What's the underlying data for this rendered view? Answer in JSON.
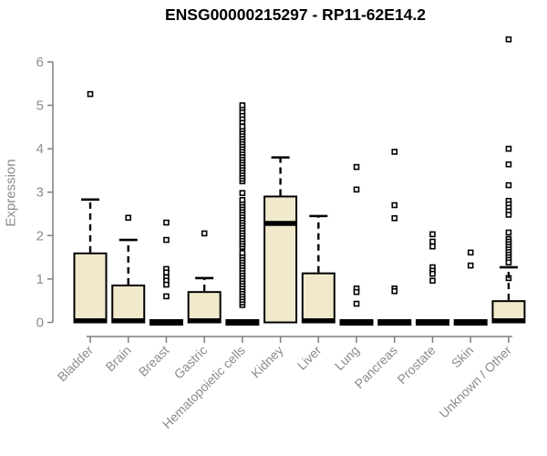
{
  "chart_data": {
    "type": "boxplot",
    "title": "ENSG00000215297 - RP11-62E14.2",
    "ylabel": "Expression",
    "xlabel": "",
    "ylim": [
      0,
      6
    ],
    "yticks": [
      0,
      1,
      2,
      3,
      4,
      5,
      6
    ],
    "grid": false,
    "legend": null,
    "categories": [
      "Bladder",
      "Brain",
      "Breast",
      "Gastric",
      "Hematopoietic cells",
      "Kidney",
      "Liver",
      "Lung",
      "Pancreas",
      "Prostate",
      "Skin",
      "Unknown / Other"
    ],
    "boxes": [
      {
        "category": "Bladder",
        "q1": 0,
        "median": 0.02,
        "q3": 1.59,
        "whisker_low": 0,
        "whisker_high": 2.83,
        "outliers": [
          5.26
        ]
      },
      {
        "category": "Brain",
        "q1": 0,
        "median": 0.02,
        "q3": 0.85,
        "whisker_low": 0,
        "whisker_high": 1.9,
        "outliers": [
          2.41
        ]
      },
      {
        "category": "Breast",
        "q1": 0,
        "median": 0,
        "q3": 0,
        "whisker_low": 0,
        "whisker_high": 0,
        "outliers": [
          2.3,
          1.9,
          1.23,
          1.15,
          1.04,
          0.96,
          0.87,
          0.6
        ]
      },
      {
        "category": "Gastric",
        "q1": 0,
        "median": 0.02,
        "q3": 0.7,
        "whisker_low": 0,
        "whisker_high": 1.02,
        "outliers": [
          2.05
        ]
      },
      {
        "category": "Hematopoietic cells",
        "q1": 0,
        "median": 0,
        "q3": 0,
        "whisker_low": 0,
        "whisker_high": 0,
        "outliers": [
          0.4,
          0.46,
          0.52,
          0.58,
          0.64,
          0.7,
          0.76,
          0.82,
          0.88,
          0.94,
          1.0,
          1.06,
          1.12,
          1.18,
          1.24,
          1.3,
          1.36,
          1.42,
          1.48,
          1.54,
          1.6,
          1.74,
          1.8,
          1.86,
          1.92,
          1.98,
          2.04,
          2.1,
          2.16,
          2.22,
          2.28,
          2.34,
          2.4,
          2.46,
          2.52,
          2.58,
          2.64,
          2.7,
          2.76,
          2.82,
          2.98,
          3.25,
          3.31,
          3.37,
          3.43,
          3.49,
          3.55,
          3.61,
          3.67,
          3.73,
          3.79,
          3.85,
          3.91,
          3.97,
          4.03,
          4.09,
          4.15,
          4.21,
          4.27,
          4.33,
          4.39,
          4.45,
          4.51,
          4.62,
          4.7,
          4.78,
          4.86,
          4.94,
          5.0
        ]
      },
      {
        "category": "Kidney",
        "q1": 0,
        "median": 2.28,
        "q3": 2.9,
        "whisker_low": 0,
        "whisker_high": 3.8,
        "outliers": []
      },
      {
        "category": "Liver",
        "q1": 0,
        "median": 0.02,
        "q3": 1.13,
        "whisker_low": 0,
        "whisker_high": 2.45,
        "outliers": []
      },
      {
        "category": "Lung",
        "q1": 0,
        "median": 0,
        "q3": 0,
        "whisker_low": 0,
        "whisker_high": 0,
        "outliers": [
          3.58,
          3.06,
          0.78,
          0.7,
          0.43
        ]
      },
      {
        "category": "Pancreas",
        "q1": 0,
        "median": 0,
        "q3": 0,
        "whisker_low": 0,
        "whisker_high": 0,
        "outliers": [
          3.93,
          2.7,
          2.4,
          0.78,
          0.72
        ]
      },
      {
        "category": "Prostate",
        "q1": 0,
        "median": 0,
        "q3": 0,
        "whisker_low": 0,
        "whisker_high": 0,
        "outliers": [
          2.03,
          1.86,
          1.75,
          1.27,
          1.19,
          1.12,
          0.96
        ]
      },
      {
        "category": "Skin",
        "q1": 0,
        "median": 0,
        "q3": 0,
        "whisker_low": 0,
        "whisker_high": 0,
        "outliers": [
          1.61,
          1.31
        ]
      },
      {
        "category": "Unknown / Other",
        "q1": 0,
        "median": 0.03,
        "q3": 0.49,
        "whisker_low": 0,
        "whisker_high": 1.27,
        "outliers": [
          6.52,
          4.0,
          3.64,
          3.16,
          2.8,
          2.72,
          2.64,
          2.56,
          2.48,
          2.07,
          1.92,
          1.86,
          1.8,
          1.74,
          1.68,
          1.62,
          1.56,
          1.5,
          1.44,
          1.38,
          1.02
        ]
      }
    ],
    "colors": {
      "box_fill": "#f0e9cc",
      "box_border": "#000000",
      "median": "#000000",
      "outlier_stroke": "#000000",
      "outlier_fill": "#ffffff",
      "axis": "#7f7f7f",
      "tick_label": "#8c8c8c",
      "title": "#000000"
    }
  }
}
